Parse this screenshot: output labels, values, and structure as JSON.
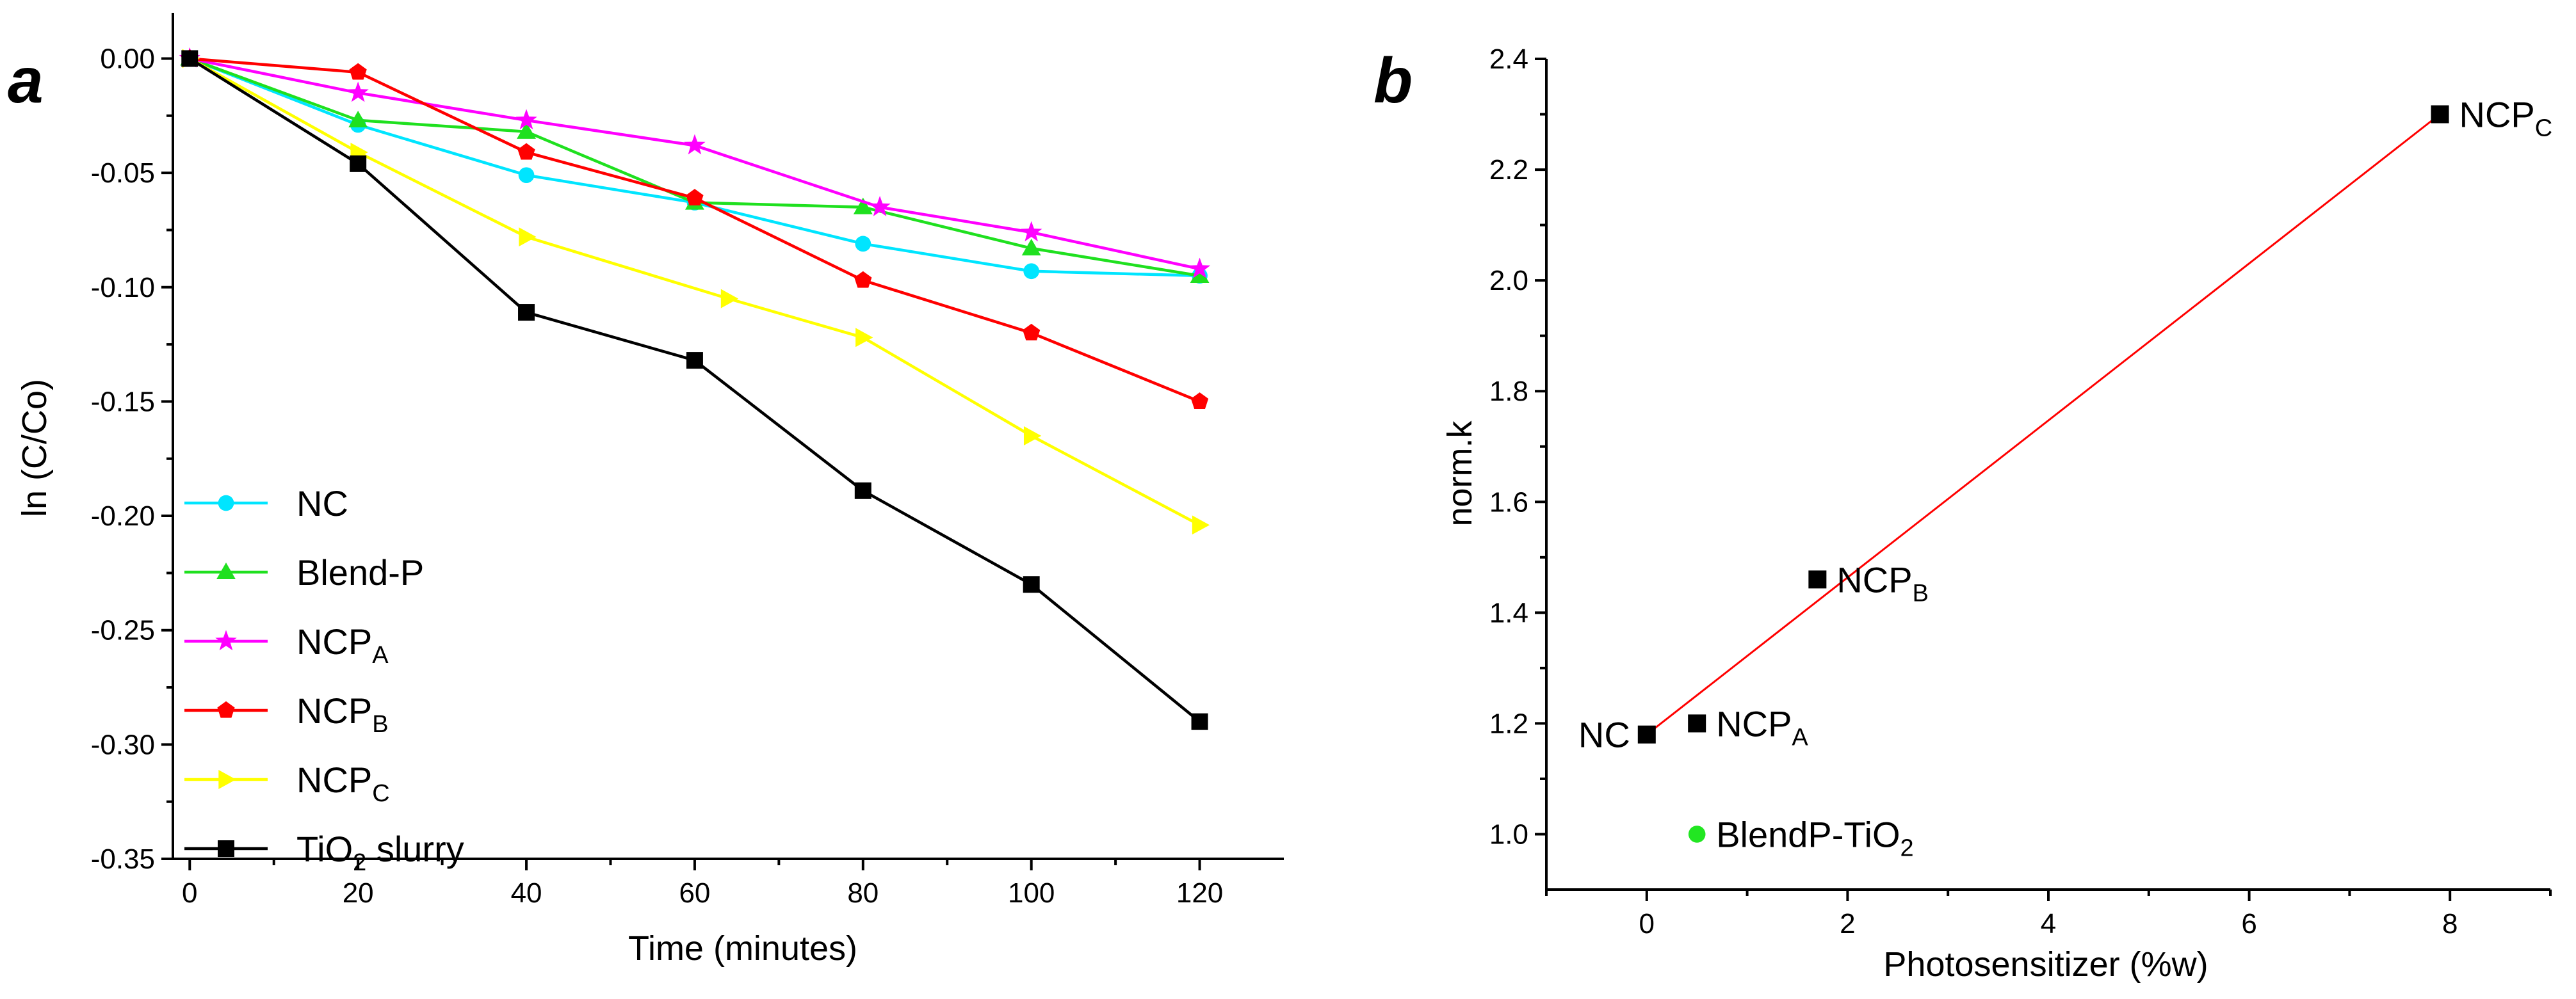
{
  "chart_data": [
    {
      "panel": "a",
      "type": "line",
      "xlabel": "Time (minutes)",
      "ylabel": "ln (C/Co)",
      "xlim": [
        -2,
        130
      ],
      "ylim": [
        -0.35,
        0.02
      ],
      "xticks": [
        0,
        20,
        40,
        60,
        80,
        100,
        120
      ],
      "yticks": [
        0.0,
        -0.05,
        -0.1,
        -0.15,
        -0.2,
        -0.25,
        -0.3,
        -0.35
      ],
      "ytick_labels": [
        "0.00",
        "-0.05",
        "-0.10",
        "-0.15",
        "-0.20",
        "-0.25",
        "-0.30",
        "-0.35"
      ],
      "legend_position": "bottom-left",
      "series": [
        {
          "name": "NC",
          "base": "NC",
          "sub": "",
          "suffix": "",
          "color": "#00e5ff",
          "marker": "circle",
          "x": [
            0,
            20,
            40,
            60,
            80,
            100,
            120
          ],
          "values": [
            0.0,
            -0.029,
            -0.051,
            -0.063,
            -0.081,
            -0.093,
            -0.095
          ]
        },
        {
          "name": "Blend-P",
          "base": "Blend-P",
          "sub": "",
          "suffix": "",
          "color": "#1fe01f",
          "marker": "triangle",
          "x": [
            0,
            20,
            40,
            60,
            80,
            100,
            120
          ],
          "values": [
            0.0,
            -0.027,
            -0.032,
            -0.063,
            -0.065,
            -0.083,
            -0.095
          ]
        },
        {
          "name": "NCPA",
          "base": "NCP",
          "sub": "A",
          "suffix": "",
          "color": "#ff00ff",
          "marker": "star",
          "x": [
            0,
            20,
            40,
            60,
            82,
            100,
            120
          ],
          "values": [
            0.0,
            -0.015,
            -0.027,
            -0.038,
            -0.065,
            -0.076,
            -0.092
          ]
        },
        {
          "name": "NCPB",
          "base": "NCP",
          "sub": "B",
          "suffix": "",
          "color": "#ff0000",
          "marker": "pentagon",
          "x": [
            0,
            20,
            40,
            60,
            80,
            100,
            120
          ],
          "values": [
            0.0,
            -0.006,
            -0.041,
            -0.061,
            -0.097,
            -0.12,
            -0.15
          ]
        },
        {
          "name": "NCPC",
          "base": "NCP",
          "sub": "C",
          "suffix": "",
          "color": "#ffff00",
          "marker": "triangle-right",
          "x": [
            0,
            20,
            40,
            64,
            80,
            100,
            120
          ],
          "values": [
            0.0,
            -0.041,
            -0.078,
            -0.105,
            -0.122,
            -0.165,
            -0.204
          ]
        },
        {
          "name": "TiO2 slurry",
          "base": "TiO",
          "sub": "2",
          "suffix": " slurry",
          "color": "#000000",
          "marker": "square",
          "x": [
            0,
            20,
            40,
            60,
            80,
            100,
            120
          ],
          "values": [
            0.0,
            -0.046,
            -0.111,
            -0.132,
            -0.189,
            -0.23,
            -0.29
          ]
        }
      ]
    },
    {
      "panel": "b",
      "type": "scatter",
      "xlabel": "Photosensitizer (%w)",
      "ylabel": "norm.k",
      "xlim": [
        -1,
        9
      ],
      "ylim": [
        0.9,
        2.4
      ],
      "xticks": [
        0,
        2,
        4,
        6,
        8
      ],
      "yticks": [
        1.0,
        1.2,
        1.4,
        1.6,
        1.8,
        2.0,
        2.2,
        2.4
      ],
      "ytick_labels": [
        "1.0",
        "1.2",
        "1.4",
        "1.6",
        "1.8",
        "2.0",
        "2.2",
        "2.4"
      ],
      "points": [
        {
          "name": "NC",
          "base": "NC",
          "sub": "",
          "x": 0.0,
          "y": 1.18,
          "color": "#000000",
          "marker": "square",
          "label_side": "left"
        },
        {
          "name": "NCPA",
          "base": "NCP",
          "sub": "A",
          "x": 0.5,
          "y": 1.2,
          "color": "#000000",
          "marker": "square",
          "label_side": "right"
        },
        {
          "name": "NCPB",
          "base": "NCP",
          "sub": "B",
          "x": 1.7,
          "y": 1.46,
          "color": "#000000",
          "marker": "square",
          "label_side": "right"
        },
        {
          "name": "NCPC",
          "base": "NCP",
          "sub": "C",
          "x": 7.9,
          "y": 2.3,
          "color": "#000000",
          "marker": "square",
          "label_side": "right"
        },
        {
          "name": "BlendP-TiO2",
          "base": "BlendP-TiO",
          "sub": "2",
          "x": 0.5,
          "y": 1.0,
          "color": "#22e622",
          "marker": "circle",
          "label_side": "right"
        }
      ],
      "fit_line": {
        "x": [
          0.0,
          7.9
        ],
        "y": [
          1.18,
          2.3
        ],
        "color": "#ff0000"
      }
    }
  ]
}
